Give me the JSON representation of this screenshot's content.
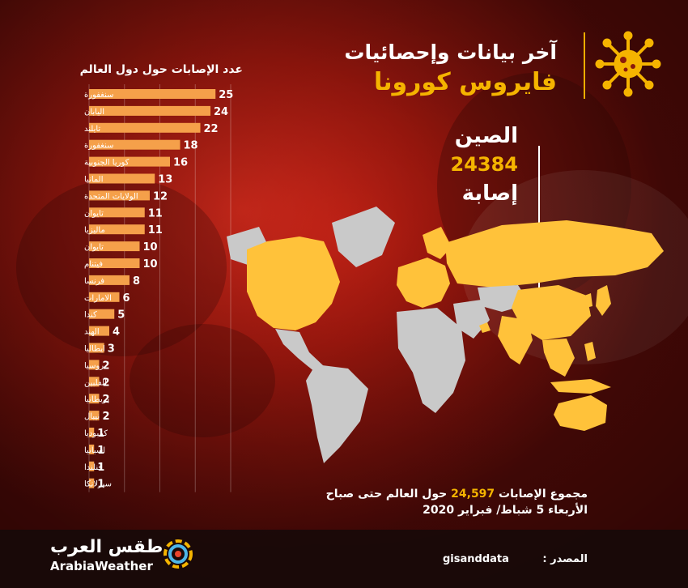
{
  "header": {
    "title_line1": "آخر بيانات وإحصائيات",
    "title_line2": "فايروس كورونا"
  },
  "highlight": {
    "country": "الصين",
    "cases": "24384",
    "unit": "إصابة"
  },
  "colors": {
    "accent": "#f5b400",
    "bar": "#f5a04a",
    "map_affected": "#ffc23a",
    "map_other": "#c9c9c9"
  },
  "chart_data": {
    "type": "bar",
    "orientation": "horizontal",
    "title": "عدد الإصابات حول دول العالم",
    "categories": [
      "سنغفورة",
      "اليابان",
      "تايلند",
      "سنغفورة",
      "كوريا الجنوبية",
      "المانيا",
      "الولايات المتحدة",
      "تايوان",
      "ماليزيا",
      "تايوان",
      "فيتنام",
      "فرنسا",
      "الامارات",
      "كندا",
      "الهند",
      "ايطاليا",
      "روسيا",
      "الفلبين",
      "بريطانيا",
      "نيبال",
      "كمبوديا",
      "اسبانيا",
      "فنلندا",
      "سيرلانكا"
    ],
    "values": [
      25,
      24,
      22,
      18,
      16,
      13,
      12,
      11,
      11,
      10,
      10,
      8,
      6,
      5,
      4,
      3,
      2,
      2,
      2,
      2,
      1,
      1,
      1,
      1
    ],
    "xlim": [
      0,
      28
    ],
    "grid": true
  },
  "summary": {
    "line1_prefix": "مجموع الإصابات",
    "total": "24,597",
    "line1_suffix": "حول العالم حتى صباح",
    "line2": "الأربعاء 5 شباط/ فبراير 2020"
  },
  "footer": {
    "brand_ar": "طقس العرب",
    "brand_en": "ArabiaWeather",
    "brand_icon": "arabiaweather-logo-icon",
    "source_label": "المصدر :",
    "source_value": "gisanddata"
  }
}
